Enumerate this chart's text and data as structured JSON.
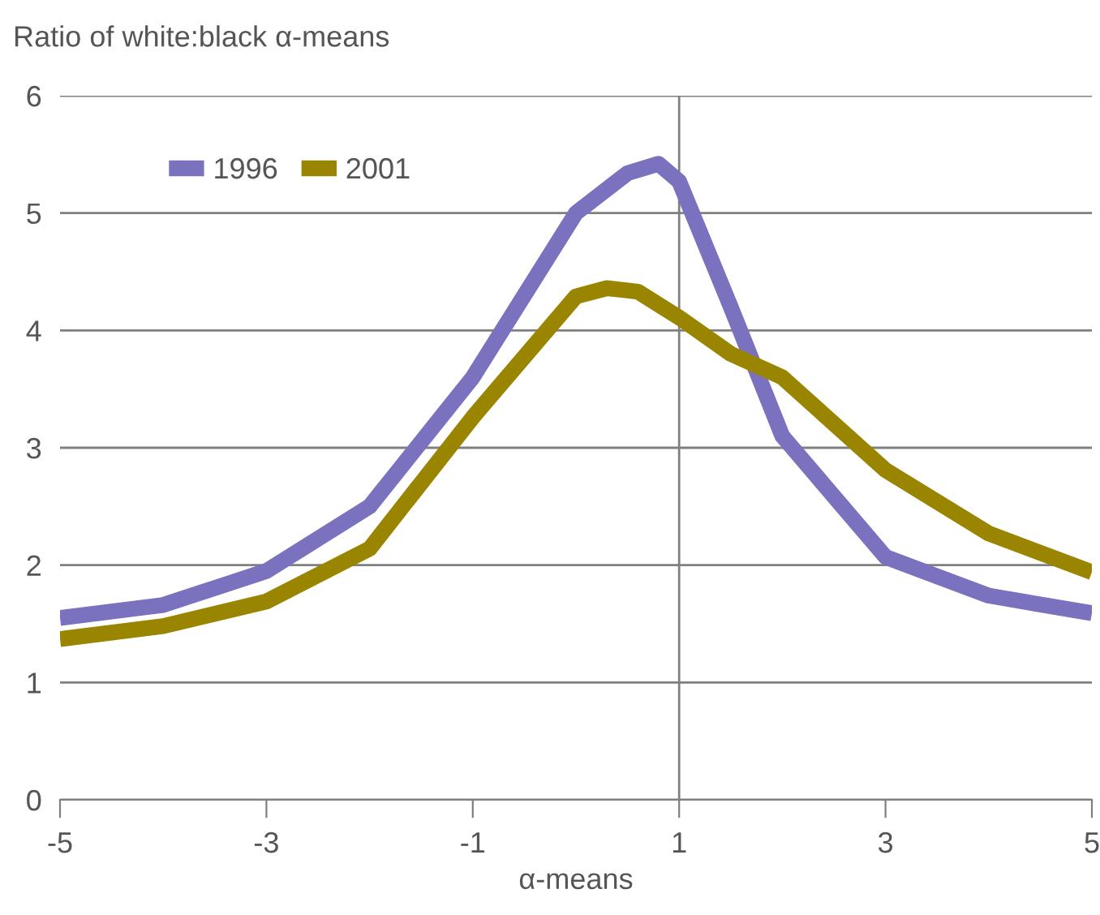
{
  "chart_data": {
    "type": "line",
    "ylabel": "Ratio of white:black α-means",
    "xlabel": "α-means",
    "series": [
      {
        "name": "1996",
        "color": "#7a72bf",
        "x": [
          -5,
          -4,
          -3,
          -2,
          -1,
          0,
          0.5,
          0.8,
          1,
          1.5,
          2,
          3,
          4,
          5
        ],
        "values": [
          1.55,
          1.66,
          1.95,
          2.5,
          3.6,
          5.0,
          5.34,
          5.42,
          5.27,
          4.2,
          3.1,
          2.07,
          1.74,
          1.59
        ]
      },
      {
        "name": "2001",
        "color": "#9a8500",
        "x": [
          -5,
          -4,
          -3,
          -2,
          -1,
          0,
          0.3,
          0.6,
          1,
          1.5,
          2,
          3,
          4,
          5
        ],
        "values": [
          1.37,
          1.48,
          1.69,
          2.14,
          3.26,
          4.29,
          4.36,
          4.33,
          4.11,
          3.8,
          3.6,
          2.81,
          2.27,
          1.94
        ]
      }
    ],
    "xlim": [
      -5,
      5
    ],
    "xticks": [
      -5,
      -3,
      -1,
      1,
      3,
      5
    ],
    "ylim": [
      0,
      6
    ],
    "yticks": [
      0,
      1,
      2,
      3,
      4,
      5,
      6
    ],
    "grid": "y",
    "legend": "top left",
    "marker": "none",
    "line_style": "solid",
    "ref_lines": [
      {
        "axis": "x",
        "value": 1,
        "color": "#808080"
      }
    ]
  }
}
